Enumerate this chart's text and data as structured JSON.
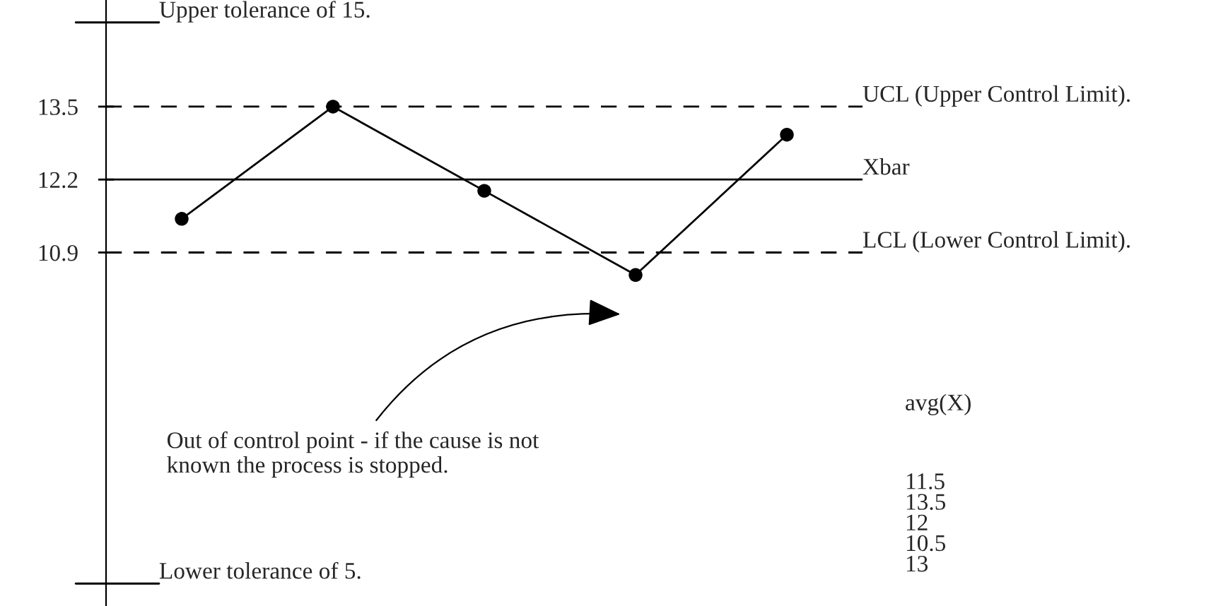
{
  "chart_data": {
    "type": "line",
    "categories": [
      null,
      null,
      null,
      null,
      null
    ],
    "series": [
      {
        "color": "#000000",
        "values": [
          11.5,
          13.5,
          12,
          10.5,
          13
        ]
      }
    ],
    "marker": "circle",
    "line_style": "solid",
    "grid": false,
    "tick_labels": "y",
    "ylim": [
      4.6,
      15.4
    ],
    "yticks": [
      13.5,
      12.2,
      10.9
    ],
    "ref_lines": [
      {
        "axis": "y",
        "value": 13.5,
        "label": "UCL (Upper Control Limit).",
        "color": "#000000",
        "line_style": "dashed"
      },
      {
        "axis": "y",
        "value": 12.2,
        "label": "Xbar",
        "color": "#000000",
        "line_style": "solid"
      },
      {
        "axis": "y",
        "value": 10.9,
        "label": "LCL (Lower Control Limit).",
        "color": "#000000",
        "line_style": "dashed"
      }
    ],
    "annotations": [
      "Upper tolerance of 15.",
      "Lower tolerance of 5.",
      "Out of control point - if the cause is not\nknown the process is stopped.",
      "avg(X)",
      "11.5",
      "13.5",
      "12",
      "10.5",
      "13"
    ]
  }
}
